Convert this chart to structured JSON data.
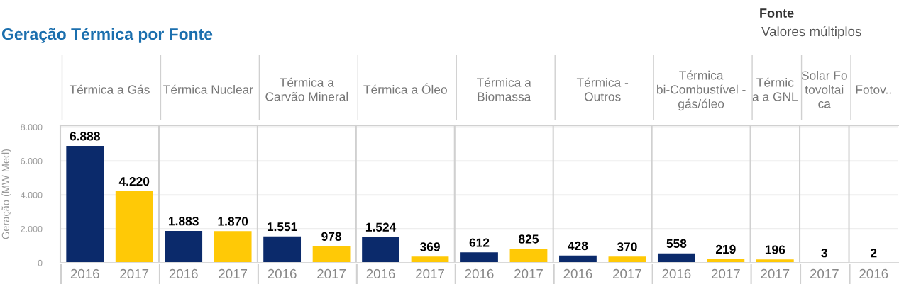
{
  "chart_data": [
    {
      "type": "other",
      "title": "Geração Térmica por Fonte",
      "annotations": [
        "Fonte",
        "Valores múltiplos"
      ]
    },
    {
      "type": "bar",
      "title": "Térmica a Gás",
      "categories": [
        "2016",
        "2017"
      ],
      "values": [
        6888,
        4220
      ],
      "colors": [
        "#0b2a6b",
        "#ffc906"
      ],
      "value_labels": [
        "6.888",
        "4.220"
      ],
      "ylabel": "Geração (MW Med)",
      "ylim": [
        0,
        8100
      ],
      "yticks": [
        0,
        {
          "value": 2000,
          "label": "2.000"
        },
        {
          "value": 4000,
          "label": "4.000"
        },
        {
          "value": 6000,
          "label": "6.000"
        },
        {
          "value": 8000,
          "label": "8.000"
        }
      ],
      "grid": "y"
    },
    {
      "type": "bar",
      "title": "Térmica Nuclear",
      "categories": [
        "2016",
        "2017"
      ],
      "values": [
        1883,
        1870
      ],
      "colors": [
        "#0b2a6b",
        "#ffc906"
      ],
      "value_labels": [
        "1.883",
        "1.870"
      ],
      "ylim": [
        0,
        8100
      ],
      "yticks": [
        {
          "value": 0,
          "label": null
        },
        {
          "value": 2000,
          "label": null
        },
        {
          "value": 4000,
          "label": null
        },
        {
          "value": 6000,
          "label": null
        },
        {
          "value": 8000,
          "label": null
        }
      ],
      "grid": "y",
      "tick_labels": "x"
    },
    {
      "type": "bar",
      "title": "Térmica a\nCarvão Mineral",
      "categories": [
        "2016",
        "2017"
      ],
      "values": [
        1551,
        978
      ],
      "colors": [
        "#0b2a6b",
        "#ffc906"
      ],
      "value_labels": [
        "1.551",
        "978"
      ],
      "ylim": [
        0,
        8100
      ],
      "yticks": [
        {
          "value": 0,
          "label": null
        },
        {
          "value": 2000,
          "label": null
        },
        {
          "value": 4000,
          "label": null
        },
        {
          "value": 6000,
          "label": null
        },
        {
          "value": 8000,
          "label": null
        }
      ],
      "grid": "y",
      "tick_labels": "x"
    },
    {
      "type": "bar",
      "title": "Térmica a Óleo",
      "categories": [
        "2016",
        "2017"
      ],
      "values": [
        1524,
        369
      ],
      "colors": [
        "#0b2a6b",
        "#ffc906"
      ],
      "value_labels": [
        "1.524",
        "369"
      ],
      "ylim": [
        0,
        8100
      ],
      "yticks": [
        {
          "value": 0,
          "label": null
        },
        {
          "value": 2000,
          "label": null
        },
        {
          "value": 4000,
          "label": null
        },
        {
          "value": 6000,
          "label": null
        },
        {
          "value": 8000,
          "label": null
        }
      ],
      "grid": "y",
      "tick_labels": "x"
    },
    {
      "type": "bar",
      "title": "Térmica a\nBiomassa",
      "categories": [
        "2016",
        "2017"
      ],
      "values": [
        612,
        825
      ],
      "colors": [
        "#0b2a6b",
        "#ffc906"
      ],
      "value_labels": [
        "612",
        "825"
      ],
      "ylim": [
        0,
        8100
      ],
      "yticks": [
        {
          "value": 0,
          "label": null
        },
        {
          "value": 2000,
          "label": null
        },
        {
          "value": 4000,
          "label": null
        },
        {
          "value": 6000,
          "label": null
        },
        {
          "value": 8000,
          "label": null
        }
      ],
      "grid": "y",
      "tick_labels": "x"
    },
    {
      "type": "bar",
      "title": "Térmica -\nOutros",
      "categories": [
        "2016",
        "2017"
      ],
      "values": [
        428,
        370
      ],
      "colors": [
        "#0b2a6b",
        "#ffc906"
      ],
      "value_labels": [
        "428",
        "370"
      ],
      "ylim": [
        0,
        8100
      ],
      "yticks": [
        {
          "value": 0,
          "label": null
        },
        {
          "value": 2000,
          "label": null
        },
        {
          "value": 4000,
          "label": null
        },
        {
          "value": 6000,
          "label": null
        },
        {
          "value": 8000,
          "label": null
        }
      ],
      "grid": "y",
      "tick_labels": "x"
    },
    {
      "type": "bar",
      "title": "Térmica\nbi-Combustível -\ngás/óleo",
      "categories": [
        "2016",
        "2017"
      ],
      "values": [
        558,
        219
      ],
      "colors": [
        "#0b2a6b",
        "#ffc906"
      ],
      "value_labels": [
        "558",
        "219"
      ],
      "ylim": [
        0,
        8100
      ],
      "yticks": [
        {
          "value": 0,
          "label": null
        },
        {
          "value": 2000,
          "label": null
        },
        {
          "value": 4000,
          "label": null
        },
        {
          "value": 6000,
          "label": null
        },
        {
          "value": 8000,
          "label": null
        }
      ],
      "grid": "y",
      "tick_labels": "x"
    },
    {
      "type": "bar",
      "title": "Térmic\na a GNL",
      "categories": [
        "2017"
      ],
      "values": [
        196
      ],
      "colors": [
        "#ffc906"
      ],
      "value_labels": [
        "196"
      ],
      "ylim": [
        0,
        8100
      ],
      "yticks": [
        {
          "value": 0,
          "label": null
        },
        {
          "value": 2000,
          "label": null
        },
        {
          "value": 4000,
          "label": null
        },
        {
          "value": 6000,
          "label": null
        },
        {
          "value": 8000,
          "label": null
        }
      ],
      "grid": "y",
      "tick_labels": "x"
    },
    {
      "type": "bar",
      "title": "Solar Fo\ntovoltai\nca",
      "categories": [
        "2017"
      ],
      "values": [
        3
      ],
      "colors": [
        "#ffc906"
      ],
      "value_labels": [
        "3"
      ],
      "ylim": [
        0,
        8100
      ],
      "yticks": [
        {
          "value": 0,
          "label": null
        },
        {
          "value": 2000,
          "label": null
        },
        {
          "value": 4000,
          "label": null
        },
        {
          "value": 6000,
          "label": null
        },
        {
          "value": 8000,
          "label": null
        }
      ],
      "grid": "y",
      "tick_labels": "x"
    },
    {
      "type": "bar",
      "title": "Fotov..",
      "categories": [
        "2016"
      ],
      "values": [
        2
      ],
      "colors": [
        "#0b2a6b"
      ],
      "value_labels": [
        "2"
      ],
      "ylim": [
        0,
        8100
      ],
      "yticks": [
        {
          "value": 0,
          "label": null
        },
        {
          "value": 2000,
          "label": null
        },
        {
          "value": 4000,
          "label": null
        },
        {
          "value": 6000,
          "label": null
        },
        {
          "value": 8000,
          "label": null
        }
      ],
      "grid": "y",
      "tick_labels": "x"
    }
  ]
}
